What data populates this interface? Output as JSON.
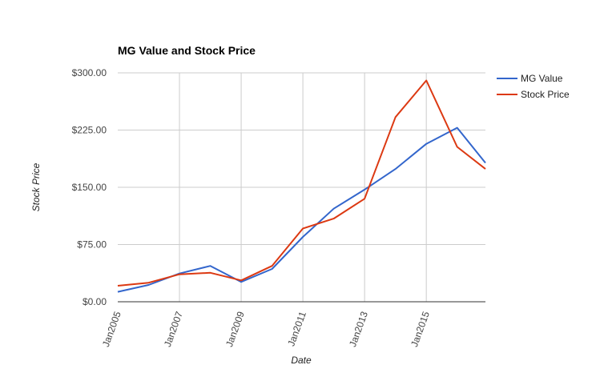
{
  "chart_data": {
    "type": "line",
    "title": "MG Value and Stock Price",
    "xlabel": "Date",
    "ylabel": "Stock Price",
    "x": [
      "2005-01",
      "2006-01",
      "2007-01",
      "2008-01",
      "2009-01",
      "2010-01",
      "2011-01",
      "2012-01",
      "2013-01",
      "2014-01",
      "2015-01",
      "2016-01",
      "2016-12"
    ],
    "xlim": [
      "2005-01",
      "2016-12"
    ],
    "x_ticks": [
      "Jan2005",
      "Jan2007",
      "Jan2009",
      "Jan2011",
      "Jan2013",
      "Jan2015"
    ],
    "ylim": [
      0,
      300
    ],
    "y_ticks": [
      "$0.00",
      "$75.00",
      "$150.00",
      "$225.00",
      "$300.00"
    ],
    "series": [
      {
        "name": "MG Value",
        "color": "#3366cc",
        "values": [
          13,
          22,
          37,
          47,
          26,
          43,
          85,
          122,
          147,
          174,
          207,
          228,
          182
        ]
      },
      {
        "name": "Stock Price",
        "color": "#dc3912",
        "values": [
          21,
          25,
          36,
          38,
          28,
          47,
          96,
          109,
          135,
          242,
          290,
          203,
          174
        ]
      }
    ],
    "grid": true,
    "legend_position": "right"
  }
}
